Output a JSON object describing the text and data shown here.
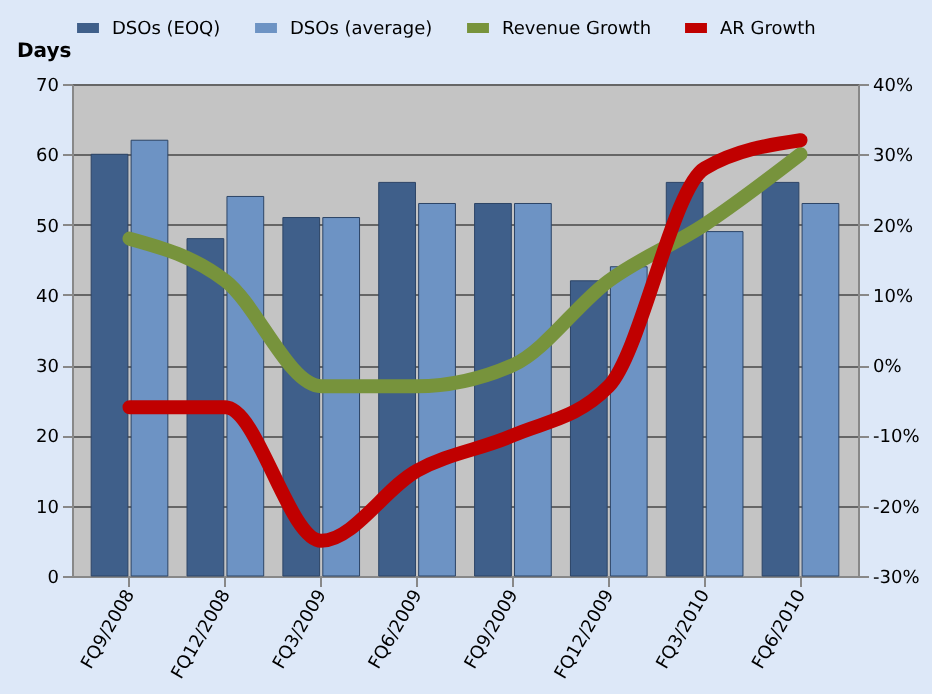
{
  "chart_data": {
    "type": "bar",
    "ylabel": "Days",
    "categories": [
      "FQ9/2008",
      "FQ12/2008",
      "FQ3/2009",
      "FQ6/2009",
      "FQ9/2009",
      "FQ12/2009",
      "FQ3/2010",
      "FQ6/2010"
    ],
    "series": [
      {
        "name": "DSOs (EOQ)",
        "color": "#3f5f8a",
        "values": [
          60,
          48,
          51,
          56,
          53,
          42,
          56,
          56
        ]
      },
      {
        "name": "DSOs (average)",
        "color": "#6d93c4",
        "values": [
          62,
          54,
          51,
          53,
          53,
          44,
          49,
          53
        ]
      },
      {
        "name": "Revenue Growth",
        "type": "line",
        "axis": "y2",
        "color": "#77933c",
        "values": [
          18,
          12,
          -3,
          -3,
          0,
          12,
          20,
          30
        ]
      },
      {
        "name": "AR Growth",
        "type": "line",
        "axis": "y2",
        "color": "#c00000",
        "values": [
          -6,
          -6,
          -25,
          -15,
          -10,
          -3,
          28,
          32
        ]
      }
    ],
    "ylim": [
      0,
      70
    ],
    "yticks": [
      0,
      10,
      20,
      30,
      40,
      50,
      60,
      70
    ],
    "y2lim": [
      -30,
      40
    ],
    "y2ticks": [
      {
        "value": -30,
        "label": "-30%"
      },
      {
        "value": -20,
        "label": "-20%"
      },
      {
        "value": -10,
        "label": "-10%"
      },
      {
        "value": 0,
        "label": "0%"
      },
      {
        "value": 10,
        "label": "10%"
      },
      {
        "value": 20,
        "label": "20%"
      },
      {
        "value": 30,
        "label": "30%"
      },
      {
        "value": 40,
        "label": "40%"
      }
    ],
    "grid": "y",
    "legend": "top"
  }
}
